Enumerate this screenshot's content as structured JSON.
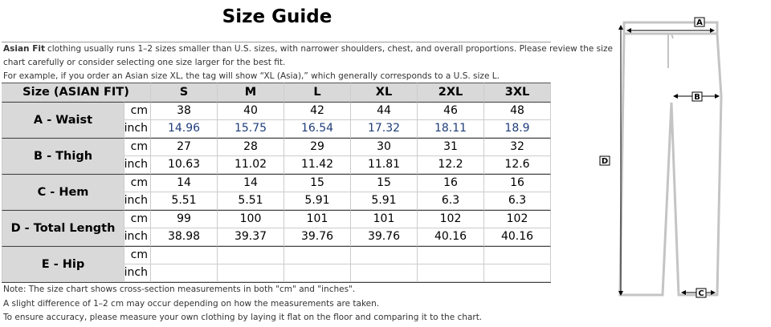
{
  "header": {
    "title": "Size Guide"
  },
  "intro": {
    "bold_lead": "Asian Fit",
    "lines": [
      "clothing usually runs 1–2 sizes smaller than U.S. sizes, with narrower shoulders, chest, and overall proportions. Please review the size",
      "chart carefully or consider selecting one size larger for the best fit.",
      "For example, if you order an Asian size XL, the tag will show “XL (Asia),” which generally corresponds to a U.S. size L."
    ]
  },
  "table": {
    "header": [
      "Size (ASIAN FIT)",
      "S",
      "M",
      "L",
      "XL",
      "2XL",
      "3XL"
    ],
    "rows": [
      {
        "label": "A - Waist",
        "units": [
          "cm",
          "inch"
        ],
        "values": [
          [
            38,
            40,
            42,
            44,
            46,
            48
          ],
          [
            14.96,
            15.75,
            16.54,
            17.32,
            18.11,
            18.9
          ]
        ]
      },
      {
        "label": "B - Thigh",
        "units": [
          "cm",
          "inch"
        ],
        "values": [
          [
            27,
            28,
            29,
            30,
            31,
            32
          ],
          [
            10.63,
            11.02,
            11.42,
            11.81,
            12.2,
            12.6
          ]
        ]
      },
      {
        "label": "C - Hem",
        "units": [
          "cm",
          "inch"
        ],
        "values": [
          [
            14,
            14,
            15,
            15,
            16,
            16
          ],
          [
            5.51,
            5.51,
            5.91,
            5.91,
            6.3,
            6.3
          ]
        ]
      },
      {
        "label": "D - Total Length",
        "units": [
          "cm",
          "inch"
        ],
        "values": [
          [
            99,
            100,
            101,
            101,
            102,
            102
          ],
          [
            38.98,
            39.37,
            39.76,
            39.76,
            40.16,
            40.16
          ]
        ]
      },
      {
        "label": "E - Hip",
        "units": [
          "cm",
          "inch"
        ]
      }
    ]
  },
  "notes": [
    "Note: The size chart shows cross-section measurements in both \"cm\" and \"inches\".",
    "A slight difference of 1–2 cm may occur depending on how the measurements are taken.",
    "To ensure accuracy, please measure your own clothing by laying it flat on the floor and comparing it to the chart."
  ],
  "diagram": {
    "labels": [
      "A",
      "B",
      "C",
      "D"
    ]
  }
}
